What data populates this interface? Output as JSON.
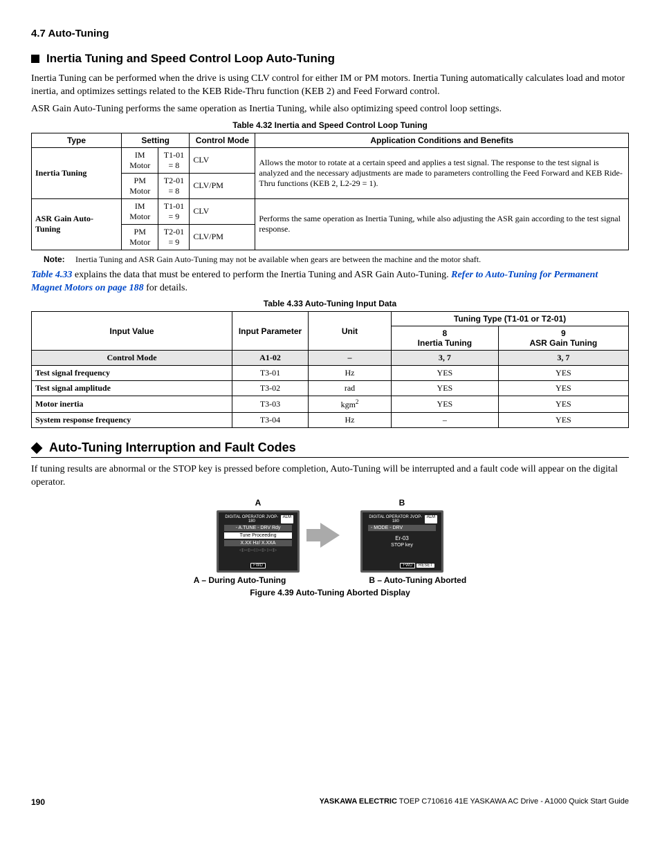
{
  "section_ref": "4.7 Auto-Tuning",
  "h_sub1": "Inertia Tuning and Speed Control Loop Auto-Tuning",
  "p1": "Inertia Tuning can be performed when the drive is using CLV control for either IM or PM motors. Inertia Tuning automatically calculates load and motor inertia, and optimizes settings related to the KEB Ride-Thru function (KEB 2) and Feed Forward control.",
  "p2": "ASR Gain Auto-Tuning performs the same operation as Inertia Tuning, while also optimizing speed control loop settings.",
  "table1_title": "Table 4.32  Inertia and Speed Control Loop Tuning",
  "t1": {
    "h": [
      "Type",
      "Setting",
      "Control Mode",
      "Application Conditions and Benefits"
    ],
    "r1": {
      "type": "Inertia Tuning",
      "m1": "IM Motor",
      "s1": "T1-01 = 8",
      "c1": "CLV",
      "m2": "PM Motor",
      "s2": "T2-01 = 8",
      "c2": "CLV/PM",
      "app": "Allows the motor to rotate at a certain speed and applies a test signal. The response to the test signal is analyzed and the necessary adjustments are made to parameters controlling the Feed Forward and KEB Ride-Thru functions (KEB 2, L2-29 = 1)."
    },
    "r2": {
      "type": "ASR Gain Auto-Tuning",
      "m1": "IM Motor",
      "s1": "T1-01 = 9",
      "c1": "CLV",
      "m2": "PM Motor",
      "s2": "T2-01 = 9",
      "c2": "CLV/PM",
      "app": "Performs the same operation as Inertia Tuning, while also adjusting the ASR gain according to the test signal response."
    }
  },
  "note_lbl": "Note:",
  "note_txt": "Inertia Tuning and ASR Gain Auto-Tuning may not be available when gears are between the machine and the motor shaft.",
  "p3a": "Table 4.33",
  "p3b": " explains the data that must be entered to perform the Inertia Tuning and ASR Gain Auto-Tuning. ",
  "p3c": "Refer to Auto-Tuning for Permanent Magnet Motors on page 188",
  "p3d": " for details.",
  "table2_title": "Table 4.33  Auto-Tuning Input Data",
  "t2": {
    "hd": {
      "iv": "Input Value",
      "ip": "Input Parameter",
      "un": "Unit",
      "tt": "Tuning Type (T1-01 or T2-01)",
      "c8a": "8",
      "c8b": "Inertia Tuning",
      "c9a": "9",
      "c9b": "ASR Gain Tuning"
    },
    "rows": [
      {
        "iv": "Control Mode",
        "ip": "A1-02",
        "un": "–",
        "c8": "3, 7",
        "c9": "3, 7",
        "shade": true,
        "bold": true
      },
      {
        "iv": "Test signal frequency",
        "ip": "T3-01",
        "un": "Hz",
        "c8": "YES",
        "c9": "YES"
      },
      {
        "iv": "Test signal amplitude",
        "ip": "T3-02",
        "un": "rad",
        "c8": "YES",
        "c9": "YES"
      },
      {
        "iv": "Motor inertia",
        "ip": "T3-03",
        "un": "kgm",
        "un_sup": "2",
        "c8": "YES",
        "c9": "YES"
      },
      {
        "iv": "System response frequency",
        "ip": "T3-04",
        "un": "Hz",
        "c8": "–",
        "c9": "YES"
      }
    ]
  },
  "h_sub0": "Auto-Tuning Interruption and Fault Codes",
  "p4": "If tuning results are abnormal or the STOP key is pressed before completion, Auto-Tuning will be interrupted and a fault code will appear on the digital operator.",
  "fig": {
    "A_lbl": "A",
    "B_lbl": "B",
    "A_top": "DIGITAL OPERATOR  JVOP-180",
    "A_tag": "ALM",
    "A_l1": "- A.TUNE -  DRV  Rdy",
    "A_l2": "Tune Proceeding",
    "A_l3": "X.XX Hz/  X.XXA",
    "A_fwd": "FWD",
    "B_top": "DIGITAL OPERATOR  JVOP-180",
    "B_tag": "ALM",
    "B_l1": "- MODE -      DRV",
    "B_l2": "Er-03",
    "B_l3": "STOP  key",
    "B_fwd": "FWD",
    "B_reset": "RESET",
    "capA": "A – During Auto-Tuning",
    "capB": "B – Auto-Tuning Aborted",
    "title": "Figure 4.39  Auto-Tuning Aborted Display"
  },
  "footer": {
    "page": "190",
    "right": "YASKAWA ELECTRIC",
    "right2": " TOEP C710616 41E YASKAWA AC Drive - A1000 Quick Start Guide"
  }
}
